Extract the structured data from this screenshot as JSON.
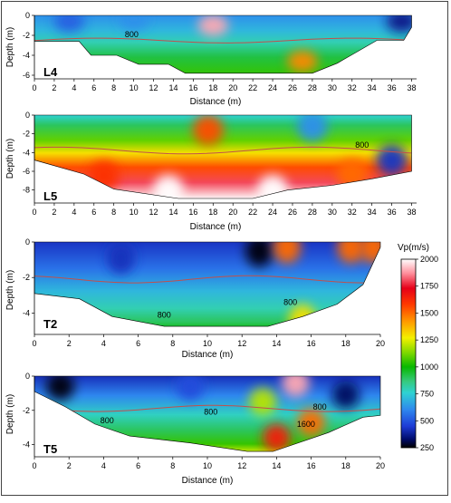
{
  "chart_data": [
    {
      "type": "heatmap",
      "id": "L4",
      "panel_label": "L4",
      "xlabel": "Distance (m)",
      "ylabel": "Depth (m)",
      "xlim": [
        0,
        38.5
      ],
      "ylim": [
        -6,
        0
      ],
      "xticks": [
        "0",
        "2",
        "4",
        "6",
        "8",
        "10",
        "12",
        "14",
        "16",
        "18",
        "20",
        "22",
        "24",
        "26",
        "28",
        "30",
        "32",
        "34",
        "36",
        "38"
      ],
      "yticks": [
        "0",
        "-2",
        "-4",
        "-6"
      ],
      "contour_labels": [
        {
          "text": "800",
          "x": 9.8,
          "y": -1.9
        }
      ],
      "bottom_profile": [
        [
          0,
          -2.6
        ],
        [
          4.5,
          -2.6
        ],
        [
          5.7,
          -4
        ],
        [
          8.3,
          -4
        ],
        [
          10.5,
          -4.9
        ],
        [
          13.5,
          -4.9
        ],
        [
          15.2,
          -5.8
        ],
        [
          28,
          -5.8
        ],
        [
          30.5,
          -4.8
        ],
        [
          34.5,
          -2.5
        ],
        [
          37.2,
          -2.5
        ],
        [
          38,
          -1.2
        ]
      ],
      "anomalies": [
        {
          "x": 18,
          "y": -1.0,
          "vp": 1900
        },
        {
          "x": 27,
          "y": -4.6,
          "vp": 1450
        },
        {
          "x": 3.5,
          "y": -0.6,
          "vp": 520
        },
        {
          "x": 10,
          "y": -0.4,
          "vp": 620
        },
        {
          "x": 37,
          "y": -0.6,
          "vp": 360
        }
      ]
    },
    {
      "type": "heatmap",
      "id": "L5",
      "panel_label": "L5",
      "xlabel": "Distance (m)",
      "ylabel": "Depth (m)",
      "xlim": [
        0,
        38.5
      ],
      "ylim": [
        -9,
        0
      ],
      "xticks": [
        "0",
        "2",
        "4",
        "6",
        "8",
        "10",
        "12",
        "14",
        "16",
        "18",
        "20",
        "22",
        "24",
        "26",
        "28",
        "30",
        "32",
        "34",
        "36",
        "38"
      ],
      "yticks": [
        "0",
        "-2",
        "-4",
        "-6",
        "-8"
      ],
      "contour_labels": [
        {
          "text": "800",
          "x": 33,
          "y": -3.2
        }
      ],
      "bottom_profile": [
        [
          0,
          -4.8
        ],
        [
          5,
          -6.3
        ],
        [
          8,
          -7.9
        ],
        [
          14.5,
          -8.9
        ],
        [
          22,
          -8.9
        ],
        [
          25.5,
          -8
        ],
        [
          30,
          -7.5
        ],
        [
          34,
          -6.8
        ],
        [
          38,
          -6
        ]
      ],
      "anomalies": [
        {
          "x": 13.5,
          "y": -8.0,
          "vp": 2000
        },
        {
          "x": 24,
          "y": -8.0,
          "vp": 2000
        },
        {
          "x": 17.5,
          "y": -1.6,
          "vp": 1550
        },
        {
          "x": 7,
          "y": -6.5,
          "vp": 1600
        },
        {
          "x": 32,
          "y": -6.3,
          "vp": 1500
        },
        {
          "x": 36,
          "y": -4.8,
          "vp": 430
        },
        {
          "x": 28,
          "y": -1.2,
          "vp": 620
        }
      ]
    },
    {
      "type": "heatmap",
      "id": "T2",
      "panel_label": "T2",
      "xlabel": "Distance (m)",
      "ylabel": "Depth (m)",
      "xlim": [
        0,
        20
      ],
      "ylim": [
        -5,
        0
      ],
      "xticks": [
        "0",
        "2",
        "4",
        "6",
        "8",
        "10",
        "12",
        "14",
        "16",
        "18",
        "20"
      ],
      "yticks": [
        "0",
        "-2",
        "-4"
      ],
      "contour_labels": [
        {
          "text": "800",
          "x": 7.5,
          "y": -4.1
        },
        {
          "text": "800",
          "x": 14.8,
          "y": -3.4
        }
      ],
      "bottom_profile": [
        [
          0,
          -2.9
        ],
        [
          2.6,
          -3.2
        ],
        [
          4.5,
          -4.2
        ],
        [
          7.5,
          -4.75
        ],
        [
          13.5,
          -4.75
        ],
        [
          15.5,
          -4.2
        ],
        [
          17.5,
          -3.5
        ],
        [
          19,
          -2.4
        ],
        [
          20,
          -0.3
        ]
      ],
      "anomalies": [
        {
          "x": 13,
          "y": -0.5,
          "vp": 260
        },
        {
          "x": 14.6,
          "y": -0.3,
          "vp": 1500
        },
        {
          "x": 18.3,
          "y": -0.3,
          "vp": 1500
        },
        {
          "x": 19.6,
          "y": -0.3,
          "vp": 1500
        },
        {
          "x": 15.5,
          "y": -4.4,
          "vp": 1300
        },
        {
          "x": 5,
          "y": -0.9,
          "vp": 420
        }
      ]
    },
    {
      "type": "heatmap",
      "id": "T5",
      "panel_label": "T5",
      "xlabel": "Distance (m)",
      "ylabel": "Depth (m)",
      "xlim": [
        0,
        20
      ],
      "ylim": [
        -4.5,
        0
      ],
      "xticks": [
        "0",
        "2",
        "4",
        "6",
        "8",
        "10",
        "12",
        "14",
        "16",
        "18",
        "20"
      ],
      "yticks": [
        "0",
        "-2",
        "-4"
      ],
      "contour_labels": [
        {
          "text": "800",
          "x": 4.2,
          "y": -2.6
        },
        {
          "text": "800",
          "x": 10.2,
          "y": -2.1
        },
        {
          "text": "800",
          "x": 16.5,
          "y": -1.8
        },
        {
          "text": "1600",
          "x": 15.7,
          "y": -2.8
        }
      ],
      "bottom_profile": [
        [
          0,
          -0.9
        ],
        [
          1.8,
          -1.8
        ],
        [
          3.5,
          -2.8
        ],
        [
          5.5,
          -3.5
        ],
        [
          9,
          -3.9
        ],
        [
          12.3,
          -4.4
        ],
        [
          13.8,
          -4.4
        ],
        [
          17,
          -3.3
        ],
        [
          19,
          -2.4
        ],
        [
          20,
          -2.3
        ]
      ],
      "anomalies": [
        {
          "x": 15.1,
          "y": -0.4,
          "vp": 1900
        },
        {
          "x": 14,
          "y": -3.6,
          "vp": 1650
        },
        {
          "x": 13.2,
          "y": -1.5,
          "vp": 1200
        },
        {
          "x": 16,
          "y": -2.7,
          "vp": 1500
        },
        {
          "x": 1.5,
          "y": -0.6,
          "vp": 260
        },
        {
          "x": 18,
          "y": -1.1,
          "vp": 320
        },
        {
          "x": 9,
          "y": -0.6,
          "vp": 480
        }
      ]
    }
  ],
  "colorbar": {
    "title": "Vp(m/s)",
    "min": 250,
    "max": 2000,
    "ticks": [
      2000,
      1750,
      1500,
      1250,
      1000,
      750,
      500,
      250
    ],
    "tick_labels": [
      "2000",
      "1750",
      "1500",
      "1250",
      "1000",
      "750",
      "500",
      "250"
    ],
    "stops": [
      {
        "v": 250,
        "color": "#000000"
      },
      {
        "v": 330,
        "color": "#000b6b"
      },
      {
        "v": 450,
        "color": "#1e3cd6"
      },
      {
        "v": 600,
        "color": "#2e86ee"
      },
      {
        "v": 760,
        "color": "#2fd2d2"
      },
      {
        "v": 870,
        "color": "#36c97a"
      },
      {
        "v": 1000,
        "color": "#08b800"
      },
      {
        "v": 1130,
        "color": "#7cd800"
      },
      {
        "v": 1270,
        "color": "#f4f000"
      },
      {
        "v": 1420,
        "color": "#ff9a00"
      },
      {
        "v": 1580,
        "color": "#ff3a00"
      },
      {
        "v": 1730,
        "color": "#e60018"
      },
      {
        "v": 1870,
        "color": "#ff8f9c"
      },
      {
        "v": 2000,
        "color": "#ffffff"
      }
    ]
  },
  "colors": {
    "contour": "#c0504d",
    "contour_faint": "#5b6fa8",
    "axis": "#000000"
  }
}
